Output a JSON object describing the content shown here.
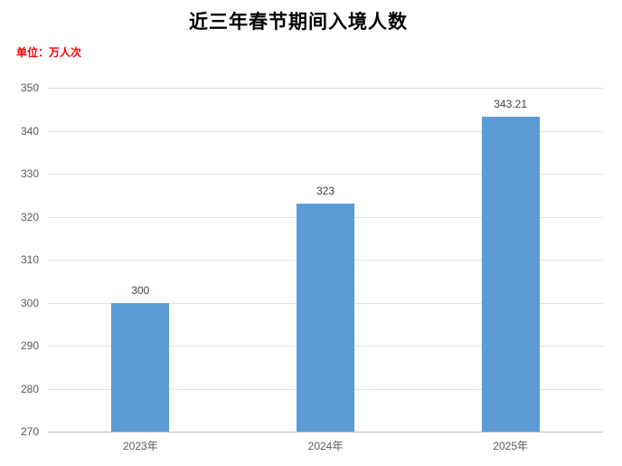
{
  "chart_data": {
    "type": "bar",
    "title": "近三年春节期间入境人数",
    "unit_label": "单位：万人次",
    "categories": [
      "2023年",
      "2024年",
      "2025年"
    ],
    "values": [
      300,
      323,
      343.21
    ],
    "value_labels": [
      "300",
      "323",
      "343.21"
    ],
    "ylim": [
      270,
      350
    ],
    "yticks": [
      270,
      280,
      290,
      300,
      310,
      320,
      330,
      340,
      350
    ],
    "ytick_step": 10,
    "grid": "horizontal",
    "legend": "none",
    "colors": {
      "bar": "#5B9BD5",
      "gridline": "#E2E2E2",
      "axis_line": "#BFBFBF",
      "axis_label": "#595959",
      "value_label": "#404040",
      "title": "#000000",
      "unit_label": "#FF0000",
      "background": "#FFFFFF"
    }
  }
}
